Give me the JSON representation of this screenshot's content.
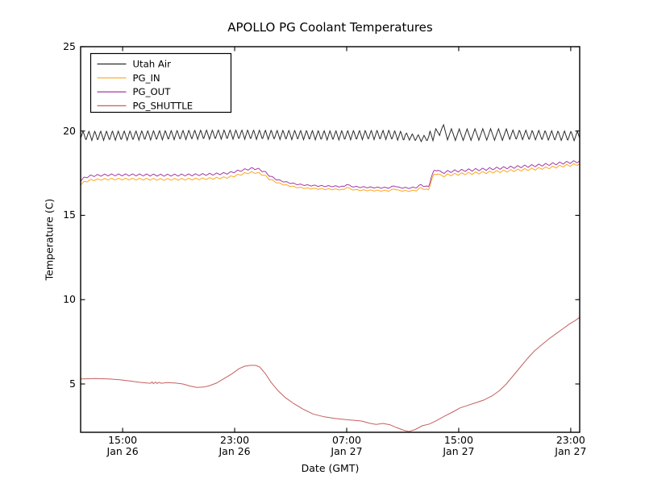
{
  "chart_data": {
    "type": "line",
    "title": "APOLLO PG Coolant Temperatures",
    "xlabel": "Date (GMT)",
    "ylabel": "Temperature (C)",
    "xlim_hours_from_jan26_1200": [
      0,
      35.64
    ],
    "ylim": [
      2.135,
      25
    ],
    "grid": false,
    "x_ticks": [
      {
        "t": 3,
        "time": "15:00",
        "date": "Jan 26"
      },
      {
        "t": 11,
        "time": "23:00",
        "date": "Jan 26"
      },
      {
        "t": 19,
        "time": "07:00",
        "date": "Jan 27"
      },
      {
        "t": 27,
        "time": "15:00",
        "date": "Jan 27"
      },
      {
        "t": 35,
        "time": "23:00",
        "date": "Jan 27"
      }
    ],
    "y_ticks": [
      5,
      10,
      15,
      20,
      25
    ],
    "legend": {
      "position": "upper-left",
      "entries": [
        "Utah Air",
        "PG_IN",
        "PG_OUT",
        "PG_SHUTTLE"
      ]
    },
    "series": [
      {
        "name": "Utah Air",
        "color": "#2a2a2a",
        "keypoints": [
          [
            0,
            19.72
          ],
          [
            5,
            19.75
          ],
          [
            10,
            19.8
          ],
          [
            14,
            19.78
          ],
          [
            18,
            19.75
          ],
          [
            22,
            19.78
          ],
          [
            23.2,
            19.7
          ],
          [
            24.0,
            19.6
          ],
          [
            24.6,
            19.55
          ],
          [
            25.0,
            19.7
          ],
          [
            25.4,
            19.85
          ],
          [
            25.7,
            20.12
          ],
          [
            25.85,
            20.1
          ],
          [
            26.2,
            19.8
          ],
          [
            27,
            19.78
          ],
          [
            29,
            19.8
          ],
          [
            31,
            19.78
          ],
          [
            33,
            19.75
          ],
          [
            35.64,
            19.7
          ]
        ],
        "oscillation": {
          "shape": "triangle",
          "period_segments": [
            [
              0,
              25.4,
              0.42
            ],
            [
              25.4,
              30.5,
              0.56
            ],
            [
              30.5,
              35.64,
              0.46
            ]
          ],
          "amp_segments": [
            [
              0,
              23.2,
              0.28
            ],
            [
              23.2,
              24.9,
              0.2
            ],
            [
              24.9,
              26.4,
              0.33
            ],
            [
              26.4,
              30.5,
              0.34
            ],
            [
              30.5,
              35.64,
              0.29
            ]
          ]
        }
      },
      {
        "name": "PG_IN",
        "color": "#ffa51e",
        "keypoints": [
          [
            0,
            16.82
          ],
          [
            0.3,
            17.0
          ],
          [
            0.8,
            17.1
          ],
          [
            2,
            17.15
          ],
          [
            4,
            17.15
          ],
          [
            6,
            17.13
          ],
          [
            8,
            17.15
          ],
          [
            9.5,
            17.19
          ],
          [
            10.5,
            17.25
          ],
          [
            11.2,
            17.38
          ],
          [
            11.8,
            17.5
          ],
          [
            12.3,
            17.55
          ],
          [
            12.7,
            17.5
          ],
          [
            13.1,
            17.38
          ],
          [
            13.5,
            17.15
          ],
          [
            14.0,
            16.95
          ],
          [
            14.6,
            16.8
          ],
          [
            15.4,
            16.67
          ],
          [
            16.2,
            16.6
          ],
          [
            17.2,
            16.56
          ],
          [
            18.2,
            16.54
          ],
          [
            18.8,
            16.52
          ],
          [
            19.0,
            16.68
          ],
          [
            19.3,
            16.54
          ],
          [
            19.8,
            16.5
          ],
          [
            20.6,
            16.48
          ],
          [
            21.4,
            16.46
          ],
          [
            22.1,
            16.46
          ],
          [
            22.4,
            16.58
          ],
          [
            22.7,
            16.47
          ],
          [
            23.4,
            16.44
          ],
          [
            24.0,
            16.48
          ],
          [
            24.3,
            16.64
          ],
          [
            24.55,
            16.54
          ],
          [
            24.85,
            16.52
          ],
          [
            25.05,
            17.1
          ],
          [
            25.25,
            17.4
          ],
          [
            25.5,
            17.5
          ],
          [
            25.75,
            17.32
          ],
          [
            26.1,
            17.38
          ],
          [
            26.6,
            17.42
          ],
          [
            27.6,
            17.48
          ],
          [
            28.6,
            17.52
          ],
          [
            29.6,
            17.58
          ],
          [
            30.6,
            17.64
          ],
          [
            31.6,
            17.7
          ],
          [
            32.6,
            17.76
          ],
          [
            33.6,
            17.84
          ],
          [
            34.6,
            17.94
          ],
          [
            35.64,
            18.04
          ]
        ],
        "oscillation": {
          "shape": "triangle",
          "period_segments": [
            [
              0,
              35.64,
              0.5
            ]
          ],
          "amp_segments": [
            [
              0,
              13.5,
              0.055
            ],
            [
              13.5,
              24.8,
              0.032
            ],
            [
              24.8,
              35.64,
              0.07
            ]
          ]
        }
      },
      {
        "name": "PG_OUT",
        "color": "#a03aa3",
        "keypoints": [
          [
            0,
            17.05
          ],
          [
            0.3,
            17.25
          ],
          [
            0.8,
            17.35
          ],
          [
            2,
            17.4
          ],
          [
            4,
            17.4
          ],
          [
            6,
            17.38
          ],
          [
            8,
            17.4
          ],
          [
            9.5,
            17.44
          ],
          [
            10.5,
            17.5
          ],
          [
            11.2,
            17.62
          ],
          [
            11.8,
            17.72
          ],
          [
            12.3,
            17.78
          ],
          [
            12.7,
            17.74
          ],
          [
            13.1,
            17.6
          ],
          [
            13.5,
            17.35
          ],
          [
            14.0,
            17.12
          ],
          [
            14.6,
            16.98
          ],
          [
            15.4,
            16.85
          ],
          [
            16.2,
            16.78
          ],
          [
            17.2,
            16.74
          ],
          [
            18.2,
            16.72
          ],
          [
            18.8,
            16.7
          ],
          [
            19.0,
            16.85
          ],
          [
            19.3,
            16.72
          ],
          [
            19.8,
            16.68
          ],
          [
            20.6,
            16.66
          ],
          [
            21.4,
            16.64
          ],
          [
            22.1,
            16.64
          ],
          [
            22.4,
            16.76
          ],
          [
            22.7,
            16.65
          ],
          [
            23.4,
            16.62
          ],
          [
            24.0,
            16.66
          ],
          [
            24.3,
            16.82
          ],
          [
            24.55,
            16.72
          ],
          [
            24.85,
            16.7
          ],
          [
            25.05,
            17.3
          ],
          [
            25.25,
            17.62
          ],
          [
            25.5,
            17.72
          ],
          [
            25.75,
            17.52
          ],
          [
            26.1,
            17.58
          ],
          [
            26.6,
            17.62
          ],
          [
            27.6,
            17.68
          ],
          [
            28.6,
            17.72
          ],
          [
            29.6,
            17.78
          ],
          [
            30.6,
            17.84
          ],
          [
            31.6,
            17.9
          ],
          [
            32.6,
            17.96
          ],
          [
            33.6,
            18.04
          ],
          [
            34.6,
            18.12
          ],
          [
            35.64,
            18.2
          ]
        ],
        "oscillation": {
          "shape": "triangle",
          "period_segments": [
            [
              0,
              35.64,
              0.5
            ]
          ],
          "amp_segments": [
            [
              0,
              13.5,
              0.06
            ],
            [
              13.5,
              24.8,
              0.035
            ],
            [
              24.8,
              35.64,
              0.075
            ]
          ]
        }
      },
      {
        "name": "PG_SHUTTLE",
        "color": "#c4605e",
        "keypoints": [
          [
            0,
            5.3
          ],
          [
            1.0,
            5.32
          ],
          [
            2.0,
            5.3
          ],
          [
            2.8,
            5.25
          ],
          [
            3.5,
            5.18
          ],
          [
            4.2,
            5.1
          ],
          [
            4.8,
            5.05
          ],
          [
            5.0,
            5.04
          ],
          [
            5.1,
            5.12
          ],
          [
            5.2,
            5.02
          ],
          [
            5.35,
            5.12
          ],
          [
            5.45,
            5.03
          ],
          [
            5.6,
            5.1
          ],
          [
            5.75,
            5.04
          ],
          [
            6.2,
            5.08
          ],
          [
            6.8,
            5.05
          ],
          [
            7.3,
            5.0
          ],
          [
            7.8,
            4.88
          ],
          [
            8.3,
            4.8
          ],
          [
            8.8,
            4.82
          ],
          [
            9.2,
            4.9
          ],
          [
            9.7,
            5.05
          ],
          [
            10.2,
            5.3
          ],
          [
            10.8,
            5.6
          ],
          [
            11.3,
            5.9
          ],
          [
            11.7,
            6.05
          ],
          [
            12.1,
            6.1
          ],
          [
            12.5,
            6.1
          ],
          [
            12.8,
            6.0
          ],
          [
            13.2,
            5.6
          ],
          [
            13.6,
            5.1
          ],
          [
            14.1,
            4.6
          ],
          [
            14.6,
            4.2
          ],
          [
            15.2,
            3.85
          ],
          [
            15.9,
            3.5
          ],
          [
            16.6,
            3.22
          ],
          [
            17.4,
            3.05
          ],
          [
            18.2,
            2.95
          ],
          [
            19.0,
            2.88
          ],
          [
            19.6,
            2.84
          ],
          [
            20.1,
            2.8
          ],
          [
            20.6,
            2.68
          ],
          [
            21.1,
            2.6
          ],
          [
            21.6,
            2.66
          ],
          [
            22.1,
            2.58
          ],
          [
            22.6,
            2.4
          ],
          [
            23.1,
            2.25
          ],
          [
            23.45,
            2.18
          ],
          [
            23.9,
            2.3
          ],
          [
            24.4,
            2.52
          ],
          [
            24.9,
            2.62
          ],
          [
            25.4,
            2.82
          ],
          [
            26.0,
            3.1
          ],
          [
            26.6,
            3.35
          ],
          [
            27.1,
            3.58
          ],
          [
            27.6,
            3.72
          ],
          [
            28.2,
            3.88
          ],
          [
            28.8,
            4.05
          ],
          [
            29.4,
            4.3
          ],
          [
            29.9,
            4.6
          ],
          [
            30.4,
            5.0
          ],
          [
            30.9,
            5.5
          ],
          [
            31.4,
            6.0
          ],
          [
            31.9,
            6.5
          ],
          [
            32.4,
            6.95
          ],
          [
            32.9,
            7.3
          ],
          [
            33.4,
            7.65
          ],
          [
            33.9,
            7.95
          ],
          [
            34.4,
            8.25
          ],
          [
            34.9,
            8.55
          ],
          [
            35.3,
            8.75
          ],
          [
            35.64,
            8.95
          ]
        ]
      }
    ]
  }
}
